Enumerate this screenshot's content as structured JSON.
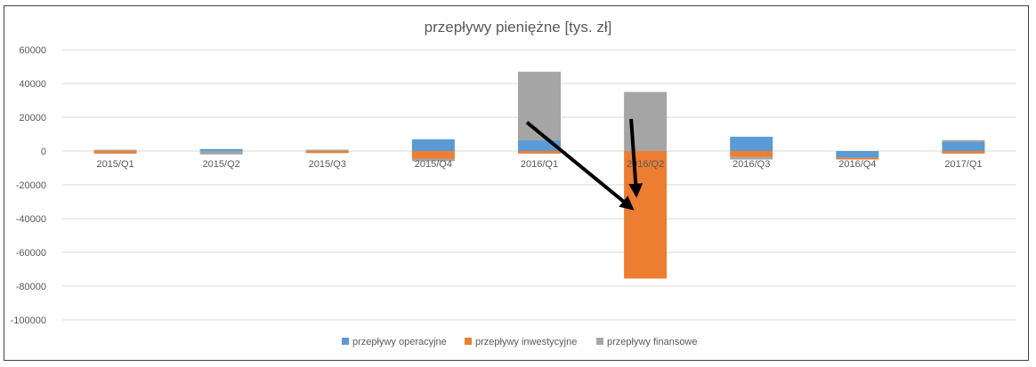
{
  "chart_data": {
    "type": "bar",
    "stacked": true,
    "title": "przepływy pieniężne [tys. zł]",
    "xlabel": "",
    "ylabel": "",
    "ylim": [
      -100000,
      60000
    ],
    "yticks": [
      60000,
      40000,
      20000,
      0,
      -20000,
      -40000,
      -60000,
      -80000,
      -100000
    ],
    "ytick_labels": [
      "60000",
      "40000",
      "20000",
      "0",
      "-20000",
      "-40000",
      "-60000",
      "-80000",
      "-100000"
    ],
    "grid": true,
    "legend_position": "bottom",
    "categories": [
      "2015/Q1",
      "2015/Q2",
      "2015/Q3",
      "2015/Q4",
      "2016/Q1",
      "2016/Q2",
      "2016/Q3",
      "2016/Q4",
      "2017/Q1"
    ],
    "series": [
      {
        "name": "przepływy operacyjne",
        "color": "#5b9bd5",
        "values": [
          0,
          1200,
          0,
          7000,
          6500,
          0,
          8500,
          -4000,
          5500
        ]
      },
      {
        "name": "przepływy inwestycyjne",
        "color": "#ed7d31",
        "values": [
          -1500,
          0,
          -1200,
          -4500,
          -1500,
          -75500,
          -3500,
          -1000,
          -1500
        ]
      },
      {
        "name": "przepływy finansowe",
        "color": "#a5a5a5",
        "values": [
          800,
          -2000,
          800,
          -1500,
          40500,
          35000,
          -1500,
          0,
          1000
        ]
      }
    ],
    "annotations": [
      {
        "type": "arrow",
        "color": "#000000",
        "from": {
          "category": "2016/Q1",
          "y": 17000
        },
        "to": {
          "category": "2016/Q2",
          "y": -34000
        }
      },
      {
        "type": "arrow",
        "color": "#000000",
        "from": {
          "category": "2016/Q2",
          "y": 19000
        },
        "to": {
          "category": "2016/Q2",
          "y": -26000
        }
      }
    ]
  }
}
